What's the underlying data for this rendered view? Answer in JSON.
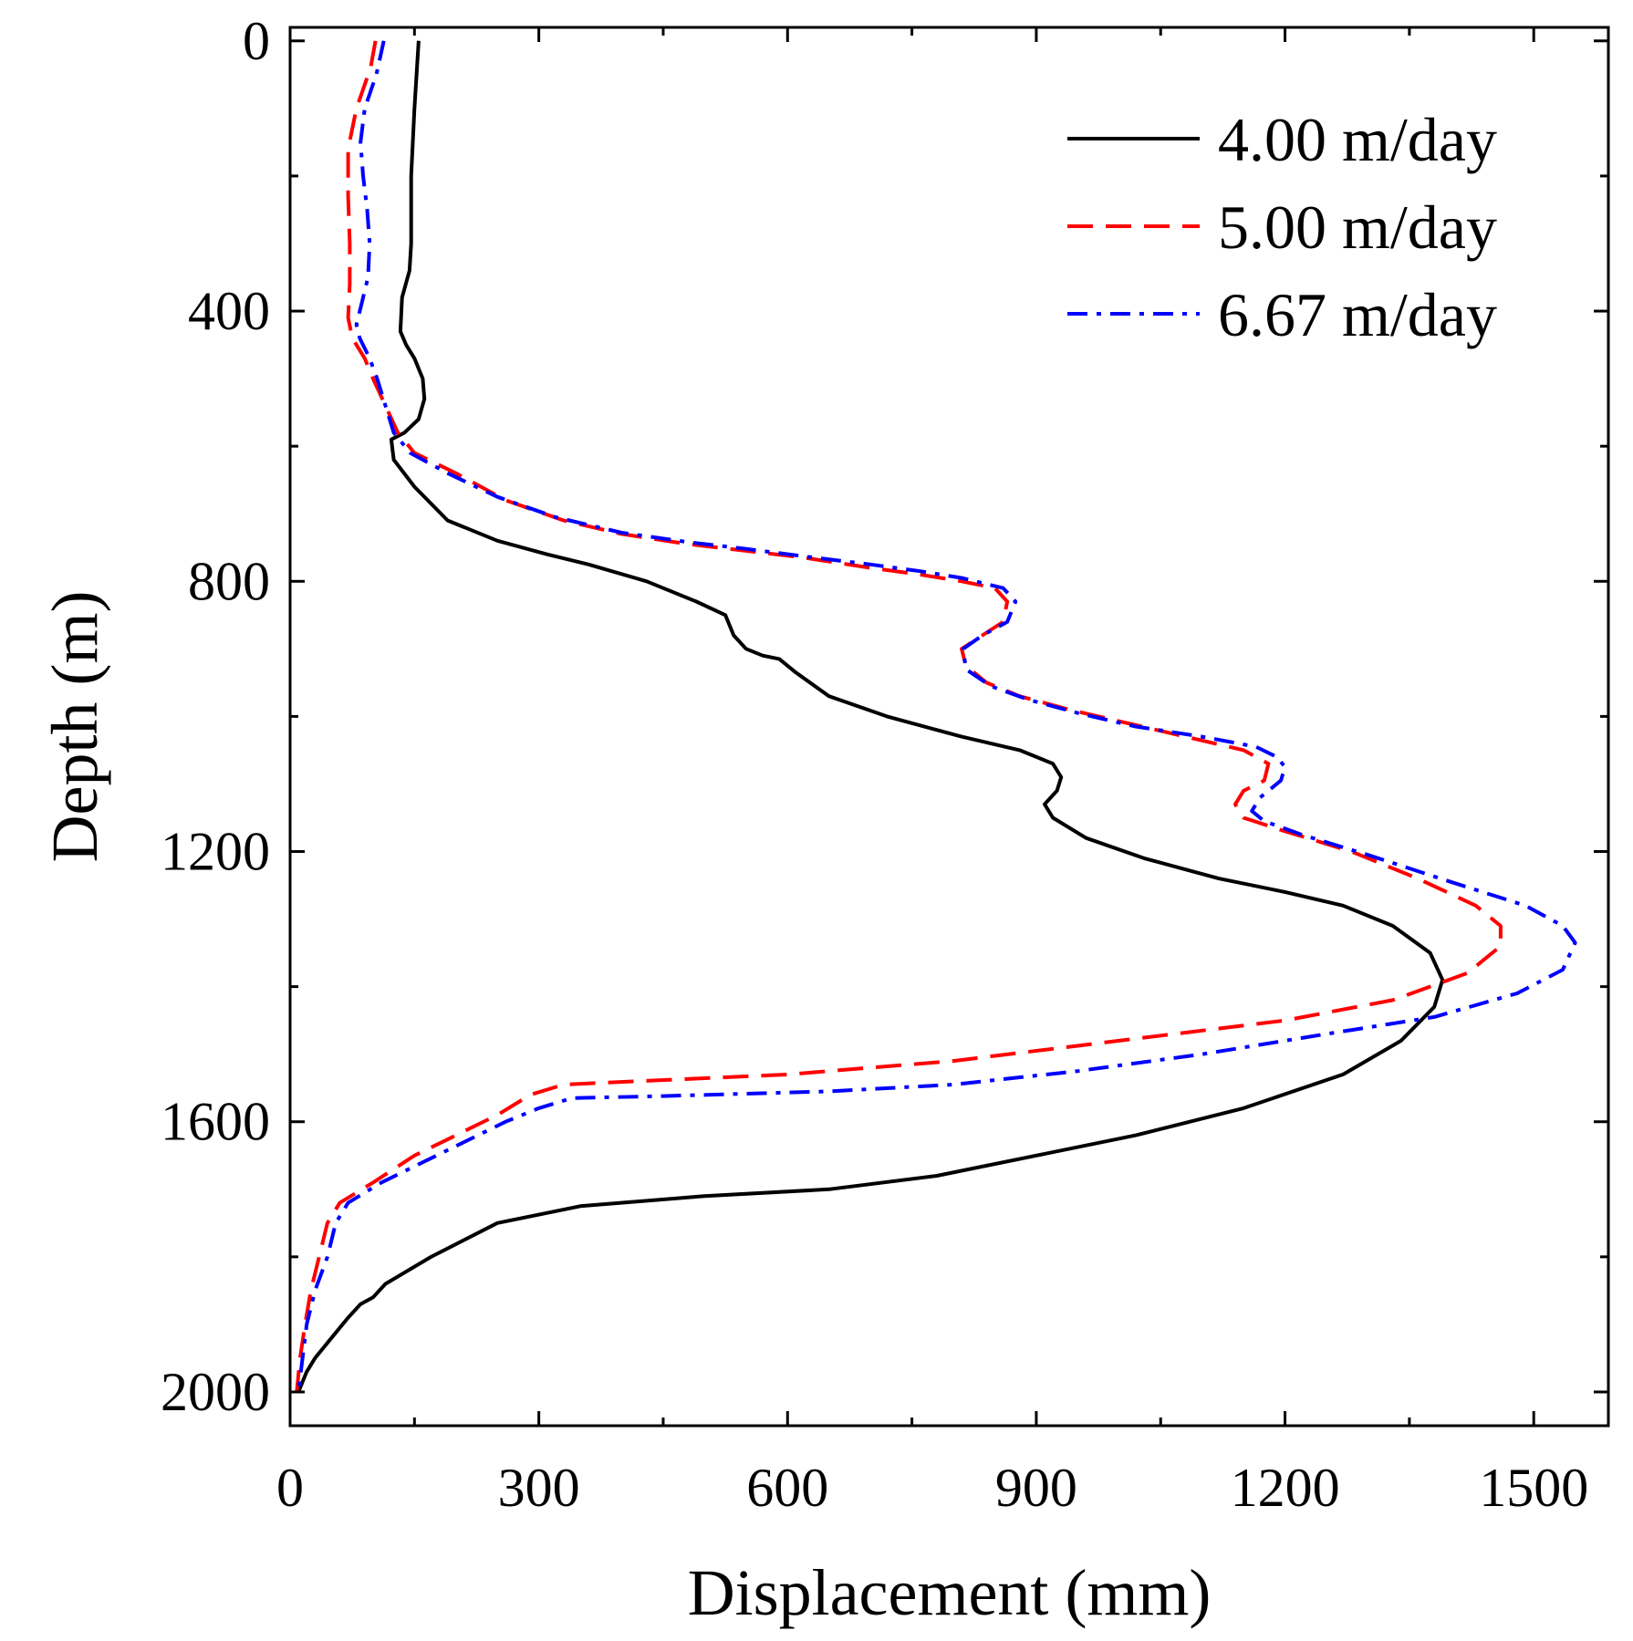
{
  "chart_data": {
    "type": "line",
    "title": "",
    "xlabel": "Displacement (mm)",
    "ylabel": "Depth (m)",
    "xlim": [
      0,
      1590
    ],
    "ylim": [
      2050,
      -20
    ],
    "y_inverted": true,
    "grid": false,
    "x_ticks": [
      0,
      300,
      600,
      900,
      1200,
      1500
    ],
    "x_tick_labels": [
      "0",
      "300",
      "600",
      "900",
      "1200",
      "1500"
    ],
    "y_ticks": [
      0,
      400,
      800,
      1200,
      1600,
      2000
    ],
    "y_tick_labels": [
      "0",
      "400",
      "800",
      "1200",
      "1600",
      "2000"
    ],
    "legend_position": "top-right",
    "series": [
      {
        "name": "4.00 m/day",
        "color": "#000000",
        "dash": "solid",
        "points": [
          [
            155,
            0
          ],
          [
            150,
            100
          ],
          [
            146,
            200
          ],
          [
            146,
            300
          ],
          [
            144,
            340
          ],
          [
            135,
            380
          ],
          [
            133,
            430
          ],
          [
            140,
            450
          ],
          [
            150,
            470
          ],
          [
            160,
            500
          ],
          [
            162,
            530
          ],
          [
            155,
            560
          ],
          [
            138,
            580
          ],
          [
            122,
            590
          ],
          [
            125,
            620
          ],
          [
            150,
            660
          ],
          [
            190,
            710
          ],
          [
            250,
            740
          ],
          [
            310,
            760
          ],
          [
            360,
            775
          ],
          [
            430,
            800
          ],
          [
            490,
            830
          ],
          [
            525,
            850
          ],
          [
            535,
            880
          ],
          [
            550,
            900
          ],
          [
            570,
            910
          ],
          [
            590,
            915
          ],
          [
            610,
            935
          ],
          [
            650,
            970
          ],
          [
            720,
            1000
          ],
          [
            810,
            1030
          ],
          [
            880,
            1050
          ],
          [
            920,
            1070
          ],
          [
            930,
            1090
          ],
          [
            925,
            1110
          ],
          [
            910,
            1130
          ],
          [
            920,
            1150
          ],
          [
            960,
            1180
          ],
          [
            1030,
            1210
          ],
          [
            1120,
            1240
          ],
          [
            1200,
            1260
          ],
          [
            1270,
            1280
          ],
          [
            1330,
            1310
          ],
          [
            1375,
            1350
          ],
          [
            1390,
            1390
          ],
          [
            1380,
            1430
          ],
          [
            1340,
            1480
          ],
          [
            1270,
            1530
          ],
          [
            1150,
            1580
          ],
          [
            1020,
            1620
          ],
          [
            900,
            1650
          ],
          [
            780,
            1680
          ],
          [
            650,
            1700
          ],
          [
            500,
            1710
          ],
          [
            350,
            1725
          ],
          [
            250,
            1750
          ],
          [
            170,
            1800
          ],
          [
            115,
            1840
          ],
          [
            100,
            1860
          ],
          [
            85,
            1870
          ],
          [
            70,
            1890
          ],
          [
            50,
            1920
          ],
          [
            30,
            1950
          ],
          [
            20,
            1970
          ],
          [
            10,
            2000
          ]
        ]
      },
      {
        "name": "5.00 m/day",
        "color": "#ff0000",
        "dash": "long",
        "points": [
          [
            103,
            0
          ],
          [
            97,
            40
          ],
          [
            80,
            100
          ],
          [
            70,
            160
          ],
          [
            70,
            230
          ],
          [
            72,
            300
          ],
          [
            72,
            360
          ],
          [
            70,
            410
          ],
          [
            75,
            440
          ],
          [
            90,
            470
          ],
          [
            100,
            500
          ],
          [
            115,
            540
          ],
          [
            130,
            580
          ],
          [
            150,
            610
          ],
          [
            200,
            640
          ],
          [
            260,
            680
          ],
          [
            330,
            710
          ],
          [
            400,
            730
          ],
          [
            480,
            745
          ],
          [
            550,
            755
          ],
          [
            620,
            765
          ],
          [
            700,
            780
          ],
          [
            760,
            790
          ],
          [
            810,
            800
          ],
          [
            850,
            810
          ],
          [
            865,
            830
          ],
          [
            860,
            860
          ],
          [
            835,
            880
          ],
          [
            810,
            900
          ],
          [
            815,
            925
          ],
          [
            840,
            950
          ],
          [
            880,
            970
          ],
          [
            940,
            990
          ],
          [
            1010,
            1010
          ],
          [
            1080,
            1030
          ],
          [
            1150,
            1050
          ],
          [
            1180,
            1070
          ],
          [
            1175,
            1095
          ],
          [
            1150,
            1110
          ],
          [
            1140,
            1130
          ],
          [
            1150,
            1150
          ],
          [
            1200,
            1170
          ],
          [
            1280,
            1200
          ],
          [
            1360,
            1240
          ],
          [
            1430,
            1280
          ],
          [
            1460,
            1310
          ],
          [
            1460,
            1340
          ],
          [
            1420,
            1380
          ],
          [
            1330,
            1420
          ],
          [
            1200,
            1450
          ],
          [
            1000,
            1480
          ],
          [
            800,
            1510
          ],
          [
            600,
            1530
          ],
          [
            420,
            1540
          ],
          [
            330,
            1545
          ],
          [
            290,
            1560
          ],
          [
            250,
            1590
          ],
          [
            200,
            1620
          ],
          [
            150,
            1650
          ],
          [
            100,
            1690
          ],
          [
            60,
            1720
          ],
          [
            45,
            1750
          ],
          [
            35,
            1800
          ],
          [
            25,
            1850
          ],
          [
            18,
            1900
          ],
          [
            12,
            1950
          ],
          [
            8,
            2000
          ]
        ]
      },
      {
        "name": "6.67 m/day",
        "color": "#0000ff",
        "dash": "dashdot",
        "points": [
          [
            113,
            0
          ],
          [
            104,
            50
          ],
          [
            90,
            100
          ],
          [
            85,
            150
          ],
          [
            88,
            200
          ],
          [
            93,
            250
          ],
          [
            96,
            300
          ],
          [
            94,
            350
          ],
          [
            86,
            390
          ],
          [
            80,
            420
          ],
          [
            84,
            440
          ],
          [
            96,
            470
          ],
          [
            105,
            500
          ],
          [
            115,
            540
          ],
          [
            125,
            580
          ],
          [
            145,
            610
          ],
          [
            190,
            640
          ],
          [
            250,
            675
          ],
          [
            320,
            705
          ],
          [
            400,
            728
          ],
          [
            480,
            742
          ],
          [
            550,
            752
          ],
          [
            620,
            763
          ],
          [
            700,
            775
          ],
          [
            760,
            785
          ],
          [
            810,
            795
          ],
          [
            860,
            810
          ],
          [
            875,
            830
          ],
          [
            865,
            860
          ],
          [
            835,
            880
          ],
          [
            812,
            900
          ],
          [
            815,
            930
          ],
          [
            845,
            955
          ],
          [
            890,
            975
          ],
          [
            950,
            995
          ],
          [
            1020,
            1015
          ],
          [
            1100,
            1030
          ],
          [
            1165,
            1045
          ],
          [
            1190,
            1060
          ],
          [
            1200,
            1075
          ],
          [
            1195,
            1095
          ],
          [
            1170,
            1120
          ],
          [
            1160,
            1140
          ],
          [
            1175,
            1155
          ],
          [
            1220,
            1175
          ],
          [
            1300,
            1205
          ],
          [
            1400,
            1245
          ],
          [
            1490,
            1280
          ],
          [
            1535,
            1310
          ],
          [
            1550,
            1335
          ],
          [
            1535,
            1375
          ],
          [
            1480,
            1410
          ],
          [
            1380,
            1445
          ],
          [
            1250,
            1470
          ],
          [
            1100,
            1500
          ],
          [
            950,
            1525
          ],
          [
            800,
            1545
          ],
          [
            650,
            1555
          ],
          [
            450,
            1562
          ],
          [
            340,
            1565
          ],
          [
            300,
            1580
          ],
          [
            260,
            1600
          ],
          [
            210,
            1630
          ],
          [
            160,
            1660
          ],
          [
            110,
            1690
          ],
          [
            70,
            1720
          ],
          [
            55,
            1750
          ],
          [
            45,
            1800
          ],
          [
            30,
            1850
          ],
          [
            20,
            1900
          ],
          [
            15,
            1950
          ],
          [
            10,
            2000
          ]
        ]
      }
    ]
  }
}
